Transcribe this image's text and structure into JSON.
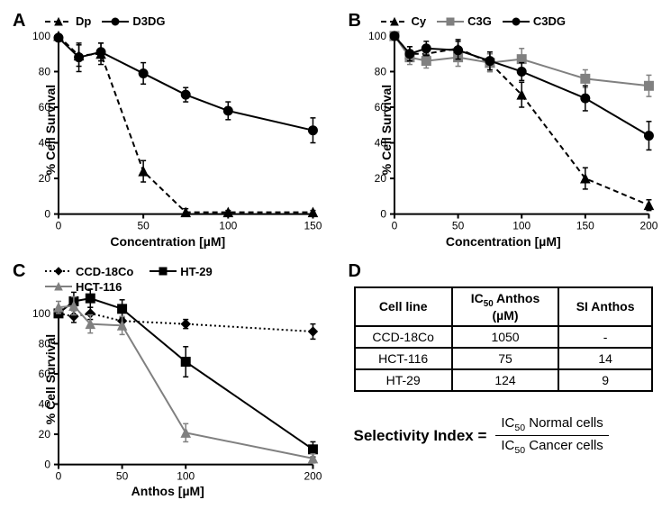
{
  "panelA": {
    "label": "A",
    "type": "line",
    "xlabel": "Concentration [µM]",
    "ylabel": "% Cell Survival",
    "xlim": [
      0,
      150
    ],
    "ylim": [
      0,
      100
    ],
    "xticks": [
      0,
      50,
      100,
      150
    ],
    "yticks": [
      0,
      20,
      40,
      60,
      80,
      100
    ],
    "series": [
      {
        "name": "Dp",
        "legend": "Dp",
        "color": "#000000",
        "dash": "6,4",
        "marker": "triangle",
        "marker_fill": "#000000",
        "x": [
          0,
          12,
          25,
          50,
          75,
          100,
          150
        ],
        "y": [
          100,
          89,
          90,
          24,
          1,
          1,
          1
        ],
        "err": [
          0,
          6,
          6,
          6,
          2,
          1,
          1
        ]
      },
      {
        "name": "D3DG",
        "legend": "D3DG",
        "color": "#000000",
        "dash": "",
        "marker": "circle",
        "marker_fill": "#000000",
        "x": [
          0,
          12,
          25,
          50,
          75,
          100,
          150
        ],
        "y": [
          99,
          88,
          91,
          79,
          67,
          58,
          47
        ],
        "err": [
          0,
          8,
          5,
          6,
          4,
          5,
          7
        ]
      }
    ]
  },
  "panelB": {
    "label": "B",
    "type": "line",
    "xlabel": "Concentration [µM]",
    "ylabel": "% Cell Survival",
    "xlim": [
      0,
      200
    ],
    "ylim": [
      0,
      100
    ],
    "xticks": [
      0,
      50,
      100,
      150,
      200
    ],
    "yticks": [
      0,
      20,
      40,
      60,
      80,
      100
    ],
    "series": [
      {
        "name": "Cy",
        "legend": "Cy",
        "color": "#000000",
        "dash": "6,4",
        "marker": "triangle",
        "marker_fill": "#000000",
        "x": [
          0,
          12,
          25,
          50,
          75,
          100,
          150,
          200
        ],
        "y": [
          100,
          90,
          90,
          93,
          85,
          67,
          20,
          5
        ],
        "err": [
          0,
          4,
          4,
          5,
          5,
          7,
          6,
          3
        ]
      },
      {
        "name": "C3G",
        "legend": "C3G",
        "color": "#808080",
        "dash": "",
        "marker": "square",
        "marker_fill": "#808080",
        "x": [
          0,
          12,
          25,
          50,
          75,
          100,
          150,
          200
        ],
        "y": [
          100,
          88,
          86,
          88,
          85,
          87,
          76,
          72
        ],
        "err": [
          0,
          4,
          4,
          5,
          5,
          6,
          5,
          6
        ]
      },
      {
        "name": "C3DG",
        "legend": "C3DG",
        "color": "#000000",
        "dash": "",
        "marker": "circle",
        "marker_fill": "#000000",
        "x": [
          0,
          12,
          25,
          50,
          75,
          100,
          150,
          200
        ],
        "y": [
          100,
          90,
          93,
          92,
          86,
          80,
          65,
          44
        ],
        "err": [
          0,
          4,
          4,
          5,
          5,
          5,
          7,
          8
        ]
      }
    ]
  },
  "panelC": {
    "label": "C",
    "type": "line",
    "xlabel": "Anthos [µM]",
    "ylabel": "% Cell Survival",
    "xlim": [
      0,
      200
    ],
    "ylim": [
      0,
      100
    ],
    "xticks": [
      0,
      50,
      100,
      200
    ],
    "yticks": [
      0,
      20,
      40,
      60,
      80,
      100
    ],
    "series": [
      {
        "name": "CCD-18Co",
        "legend": "CCD-18Co",
        "color": "#000000",
        "dash": "2,3",
        "marker": "diamond",
        "marker_fill": "#000000",
        "x": [
          0,
          12,
          25,
          50,
          100,
          200
        ],
        "y": [
          100,
          98,
          100,
          95,
          93,
          88
        ],
        "err": [
          0,
          4,
          4,
          3,
          3,
          5
        ]
      },
      {
        "name": "HT-29",
        "legend": "HT-29",
        "color": "#000000",
        "dash": "",
        "marker": "square",
        "marker_fill": "#000000",
        "x": [
          0,
          12,
          25,
          50,
          100,
          200
        ],
        "y": [
          100,
          108,
          110,
          103,
          68,
          10
        ],
        "err": [
          0,
          6,
          6,
          6,
          10,
          5
        ]
      },
      {
        "name": "HCT-116",
        "legend": "HCT-116",
        "color": "#808080",
        "dash": "",
        "marker": "triangle",
        "marker_fill": "#808080",
        "x": [
          0,
          12,
          25,
          50,
          100,
          200
        ],
        "y": [
          104,
          105,
          93,
          92,
          21,
          4
        ],
        "err": [
          4,
          6,
          6,
          6,
          6,
          3
        ]
      }
    ]
  },
  "panelD": {
    "label": "D",
    "columns": [
      "Cell line",
      "IC50 Anthos (µM)",
      "SI Anthos"
    ],
    "rows": [
      [
        "CCD-18Co",
        "1050",
        "-"
      ],
      [
        "HCT-116",
        "75",
        "14"
      ],
      [
        "HT-29",
        "124",
        "9"
      ]
    ],
    "formula": {
      "lhs": "Selectivity Index =",
      "num": "IC50 Normal cells",
      "den": "IC50 Cancer cells"
    }
  },
  "style": {
    "axis_stroke": "#000000",
    "axis_width": 2,
    "tick_len": 5,
    "tick_fontsize": 12,
    "label_fontsize": 14,
    "marker_size": 5,
    "line_width": 2,
    "err_cap": 3
  }
}
